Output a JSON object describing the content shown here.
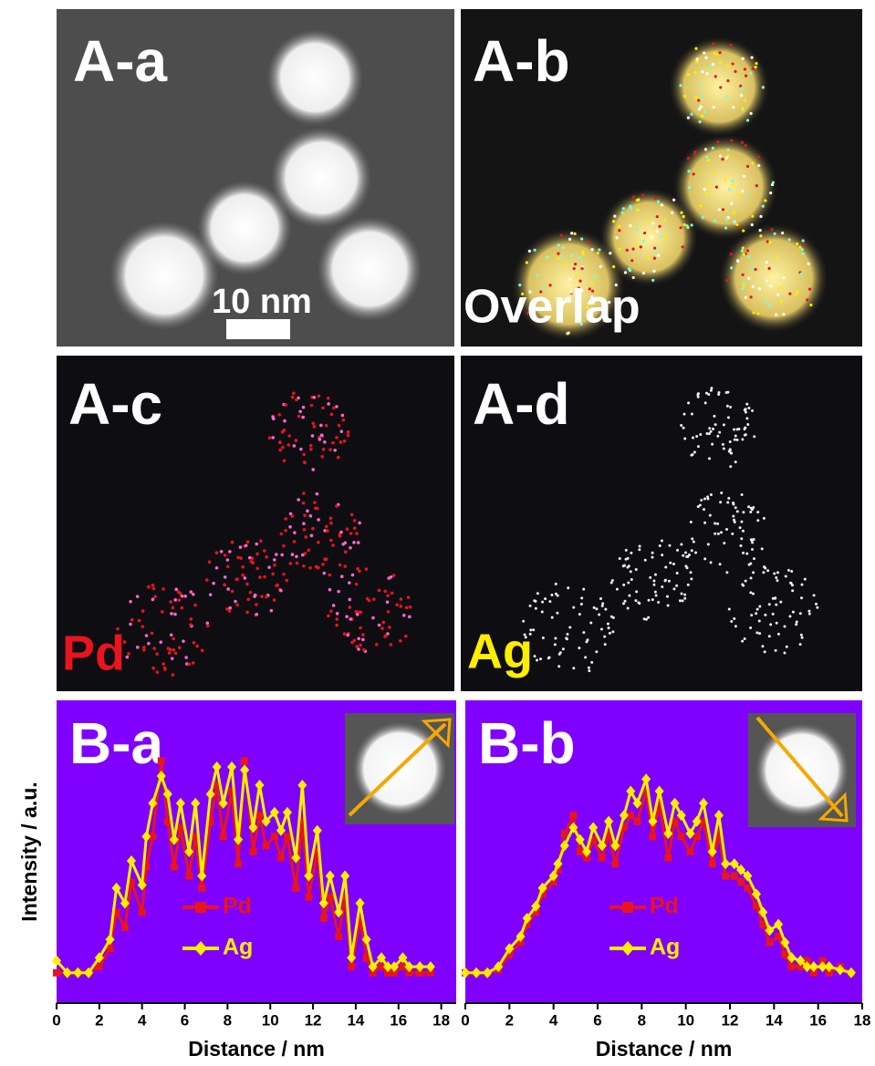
{
  "images": [
    {
      "label": "A-a",
      "scale_bar": "10 nm"
    },
    {
      "label": "A-b",
      "caption": "Overlap"
    },
    {
      "label": "A-c",
      "caption": "Pd"
    },
    {
      "label": "A-d",
      "caption": "Ag"
    }
  ],
  "chart_data": [
    {
      "type": "line",
      "label": "B-a",
      "ylabel": "Intensity / a.u.",
      "xlabel": "Distance / nm",
      "x": [
        0,
        0.5,
        1,
        1.5,
        2,
        2.5,
        2.8,
        3.2,
        3.5,
        4,
        4.2,
        4.5,
        4.9,
        5.2,
        5.5,
        5.8,
        6.2,
        6.5,
        6.8,
        7.2,
        7.5,
        7.8,
        8.2,
        8.5,
        8.8,
        9.2,
        9.5,
        9.8,
        10.2,
        10.5,
        10.8,
        11.2,
        11.5,
        11.8,
        12.2,
        12.5,
        12.8,
        13.2,
        13.5,
        13.8,
        14.2,
        14.5,
        14.8,
        15.2,
        15.5,
        15.8,
        16.2,
        16.5,
        17,
        17.5
      ],
      "xlim": [
        0,
        18.7
      ],
      "xticks": [
        0,
        2,
        4,
        6,
        8,
        10,
        12,
        14,
        16,
        18
      ],
      "ylim": [
        0,
        100
      ],
      "background": "#7f00ff",
      "legend": "center",
      "series": [
        {
          "name": "Pd",
          "color": "#e8141e",
          "marker": "square",
          "values": [
            10,
            10,
            10,
            10,
            12,
            18,
            30,
            25,
            40,
            30,
            45,
            55,
            80,
            60,
            45,
            58,
            42,
            55,
            38,
            60,
            72,
            55,
            70,
            46,
            80,
            50,
            62,
            52,
            55,
            48,
            55,
            38,
            60,
            35,
            50,
            28,
            35,
            22,
            35,
            12,
            28,
            15,
            10,
            12,
            10,
            10,
            12,
            10,
            10,
            10
          ]
        },
        {
          "name": "Ag",
          "color": "#ffee00",
          "marker": "diamond",
          "values": [
            14,
            10,
            10,
            10,
            15,
            21,
            38,
            33,
            47,
            39,
            55,
            66,
            75,
            69,
            54,
            66,
            50,
            66,
            42,
            69,
            78,
            66,
            78,
            54,
            77,
            58,
            72,
            60,
            63,
            57,
            63,
            48,
            72,
            42,
            57,
            33,
            42,
            30,
            42,
            15,
            33,
            21,
            12,
            15,
            12,
            12,
            15,
            12,
            12,
            12
          ]
        }
      ]
    },
    {
      "type": "line",
      "label": "B-b",
      "xlabel": "Distance / nm",
      "x": [
        0,
        0.5,
        1,
        1.5,
        2,
        2.5,
        2.8,
        3.2,
        3.5,
        4,
        4.2,
        4.5,
        4.9,
        5.2,
        5.5,
        5.8,
        6.2,
        6.5,
        6.8,
        7.2,
        7.5,
        7.8,
        8.2,
        8.5,
        8.8,
        9.2,
        9.5,
        9.8,
        10.2,
        10.5,
        10.8,
        11.2,
        11.5,
        11.8,
        12.2,
        12.5,
        12.8,
        13.2,
        13.5,
        13.8,
        14.2,
        14.5,
        14.8,
        15.2,
        15.5,
        15.8,
        16.2,
        16.5,
        17,
        17.5
      ],
      "xlim": [
        0,
        18
      ],
      "xticks": [
        0,
        2,
        4,
        6,
        8,
        10,
        12,
        14,
        16,
        18
      ],
      "ylim": [
        0,
        100
      ],
      "background": "#7f00ff",
      "legend": "center",
      "series": [
        {
          "name": "Pd",
          "color": "#e8141e",
          "marker": "square",
          "values": [
            10,
            10,
            10,
            11,
            16,
            20,
            26,
            30,
            36,
            40,
            44,
            56,
            62,
            50,
            48,
            54,
            48,
            56,
            46,
            58,
            62,
            60,
            70,
            55,
            66,
            48,
            60,
            55,
            50,
            55,
            60,
            46,
            56,
            42,
            42,
            40,
            38,
            32,
            26,
            20,
            22,
            16,
            12,
            12,
            14,
            10,
            14,
            10,
            12,
            10
          ]
        },
        {
          "name": "Ag",
          "color": "#ffee00",
          "marker": "diamond",
          "values": [
            10,
            10,
            10,
            12,
            18,
            22,
            28,
            32,
            38,
            42,
            46,
            52,
            58,
            54,
            50,
            58,
            52,
            60,
            52,
            62,
            70,
            66,
            74,
            60,
            70,
            56,
            66,
            62,
            56,
            60,
            66,
            50,
            62,
            46,
            46,
            44,
            42,
            36,
            30,
            24,
            26,
            20,
            15,
            14,
            12,
            12,
            12,
            12,
            11,
            10
          ]
        }
      ]
    }
  ]
}
